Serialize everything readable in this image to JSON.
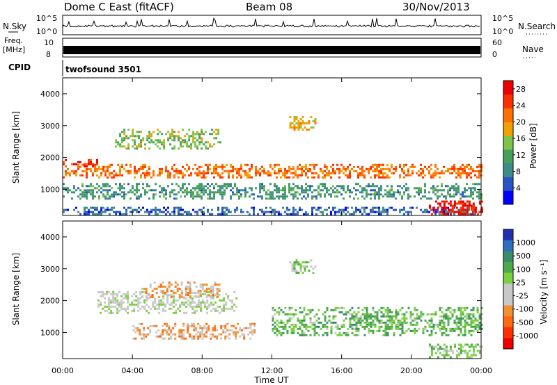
{
  "header": {
    "station": "Dome C East (fitACF)",
    "beam": "Beam 08",
    "date": "30/Nov/2013"
  },
  "top_panels": {
    "nsky_label": "N.Sky",
    "nsky_ticks": [
      "10^5",
      "10^0"
    ],
    "nsearch_label": "N.Search",
    "nsearch_ticks": [
      "10^5",
      "10^0"
    ],
    "freq_label": "Freq.",
    "freq_unit": "[MHz]",
    "freq_ticks": [
      "10",
      "8"
    ],
    "nave_label": "Nave",
    "nave_ticks": [
      "60",
      "0"
    ],
    "cpid_label": "CPID",
    "cpid_value": "twofsound 3501"
  },
  "colors": {
    "power_scale": [
      "#0000ff",
      "#2a54c4",
      "#3f8a8a",
      "#45a05a",
      "#7fc44a",
      "#f0a000",
      "#ff7000",
      "#ff3000",
      "#ee0000"
    ],
    "velocity_scale": [
      "#2030b0",
      "#2f6fc0",
      "#3a8c6a",
      "#4caa4a",
      "#7ad040",
      "#c8c8c8",
      "#c8c8c8",
      "#f09030",
      "#ff6a10",
      "#ff3000",
      "#ee0000"
    ]
  },
  "chart_data": [
    {
      "type": "heatmap",
      "quantity": "power",
      "xlabel": "",
      "ylabel": "Slant Range [km]",
      "x_ticks": [
        "00:00",
        "04:00",
        "08:00",
        "12:00",
        "16:00",
        "20:00",
        "00:00"
      ],
      "x_hours": [
        0,
        4,
        8,
        12,
        16,
        20,
        24
      ],
      "y_ticks": [
        1000,
        2000,
        3000,
        4000
      ],
      "ylim": [
        180,
        4500
      ],
      "xlim_hours": [
        0,
        24
      ],
      "colorbar": {
        "label": "Power [dB]",
        "ticks": [
          4,
          8,
          12,
          16,
          20,
          24,
          28
        ],
        "range": [
          0,
          30
        ]
      },
      "echo_regions": [
        {
          "t": [
            0,
            24
          ],
          "r": [
            1350,
            1800
          ],
          "value": 22
        },
        {
          "t": [
            0,
            2
          ],
          "r": [
            1700,
            1950
          ],
          "value": 26
        },
        {
          "t": [
            3,
            9
          ],
          "r": [
            2300,
            2900
          ],
          "value": 14
        },
        {
          "t": [
            13,
            14.5
          ],
          "r": [
            2900,
            3300
          ],
          "value": 18
        },
        {
          "t": [
            0,
            24
          ],
          "r": [
            700,
            1200
          ],
          "value": 10
        },
        {
          "t": [
            0,
            24
          ],
          "r": [
            200,
            450
          ],
          "value": 6
        },
        {
          "t": [
            21,
            24
          ],
          "r": [
            250,
            650
          ],
          "value": 28
        }
      ]
    },
    {
      "type": "heatmap",
      "quantity": "velocity",
      "xlabel": "Time UT",
      "ylabel": "Slant Range [km]",
      "x_ticks": [
        "00:00",
        "04:00",
        "08:00",
        "12:00",
        "16:00",
        "20:00",
        "00:00"
      ],
      "x_hours": [
        0,
        4,
        8,
        12,
        16,
        20,
        24
      ],
      "y_ticks": [
        1000,
        2000,
        3000,
        4000
      ],
      "ylim": [
        180,
        4500
      ],
      "xlim_hours": [
        0,
        24
      ],
      "colorbar": {
        "label": "Velocity [m s⁻¹]",
        "ticks": [
          1000,
          500,
          100,
          25,
          -25,
          -100,
          -500,
          -1000
        ]
      },
      "echo_regions": [
        {
          "t": [
            2,
            10
          ],
          "r": [
            1600,
            2300
          ],
          "value": 0
        },
        {
          "t": [
            4.5,
            9
          ],
          "r": [
            2100,
            2600
          ],
          "value": -300
        },
        {
          "t": [
            4,
            11
          ],
          "r": [
            800,
            1300
          ],
          "value": -300
        },
        {
          "t": [
            12,
            24
          ],
          "r": [
            900,
            1800
          ],
          "value": 300
        },
        {
          "t": [
            13,
            14.5
          ],
          "r": [
            2900,
            3300
          ],
          "value": 100
        },
        {
          "t": [
            21,
            24
          ],
          "r": [
            250,
            650
          ],
          "value": 200
        }
      ]
    }
  ]
}
